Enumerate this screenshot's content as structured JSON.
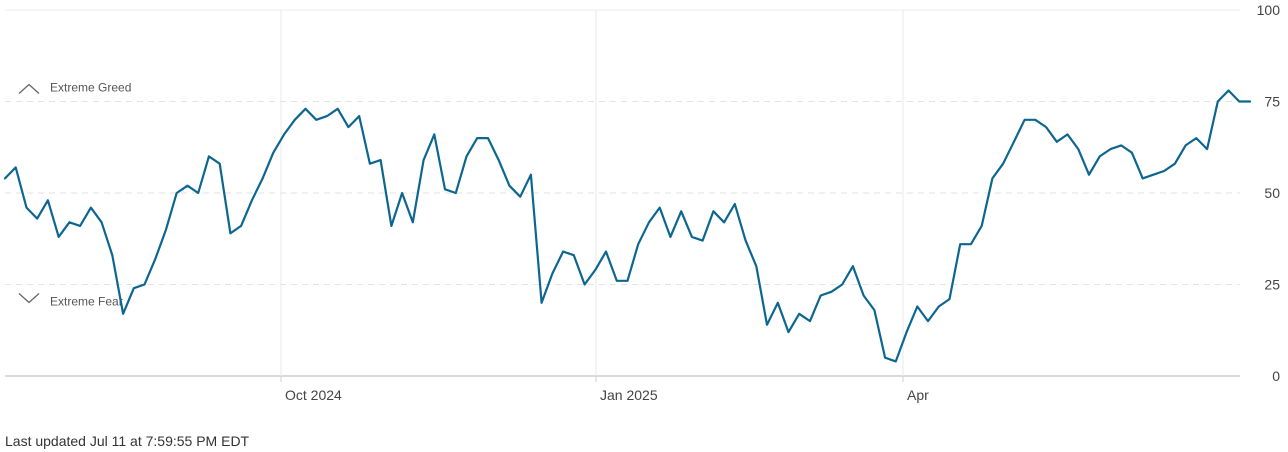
{
  "chart_data": {
    "type": "line",
    "x_axis": {
      "tick_labels": [
        "Oct 2024",
        "Jan 2025",
        "Apr"
      ]
    },
    "y_axis": {
      "ylim": [
        0,
        100
      ],
      "ticks": [
        0,
        25,
        50,
        75,
        100
      ],
      "position": "right"
    },
    "zones": [
      {
        "label": "Extreme Greed",
        "threshold": 75,
        "icon": "chevron-up-icon"
      },
      {
        "label": "Extreme Fear",
        "threshold": 25,
        "icon": "chevron-down-icon"
      }
    ],
    "grid": true,
    "series": [
      {
        "color": "#0d6690",
        "values": [
          54,
          57,
          46,
          43,
          48,
          38,
          42,
          41,
          46,
          42,
          33,
          17,
          24,
          25,
          32,
          40,
          50,
          52,
          50,
          60,
          58,
          39,
          41,
          48,
          54,
          61,
          66,
          70,
          73,
          70,
          71,
          73,
          68,
          71,
          58,
          59,
          41,
          50,
          42,
          59,
          66,
          51,
          50,
          60,
          65,
          65,
          59,
          52,
          49,
          55,
          20,
          28,
          34,
          33,
          25,
          29,
          34,
          26,
          26,
          36,
          42,
          46,
          38,
          45,
          38,
          37,
          45,
          42,
          47,
          37,
          30,
          14,
          20,
          12,
          17,
          15,
          22,
          23,
          25,
          30,
          22,
          18,
          5,
          4,
          12,
          19,
          15,
          19,
          21,
          36,
          36,
          41,
          54,
          58,
          64,
          70,
          70,
          68,
          64,
          66,
          62,
          55,
          60,
          62,
          63,
          61,
          54,
          55,
          56,
          58,
          63,
          65,
          62,
          75,
          78,
          75,
          75
        ]
      }
    ]
  },
  "footer": {
    "last_updated": "Last updated Jul 11 at 7:59:55 PM EDT"
  }
}
